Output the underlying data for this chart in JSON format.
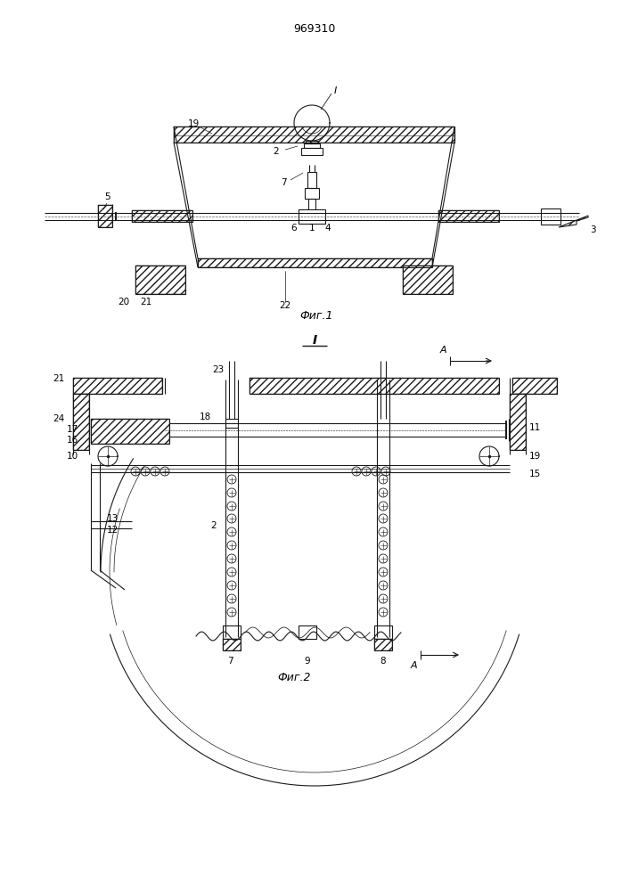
{
  "title": "969310",
  "fig1_caption": "Фиг.1",
  "fig2_caption": "Фиг.2",
  "section_label": "I",
  "bg_color": "#ffffff",
  "line_color": "#1a1a1a",
  "lw": 0.8,
  "lw2": 1.4
}
